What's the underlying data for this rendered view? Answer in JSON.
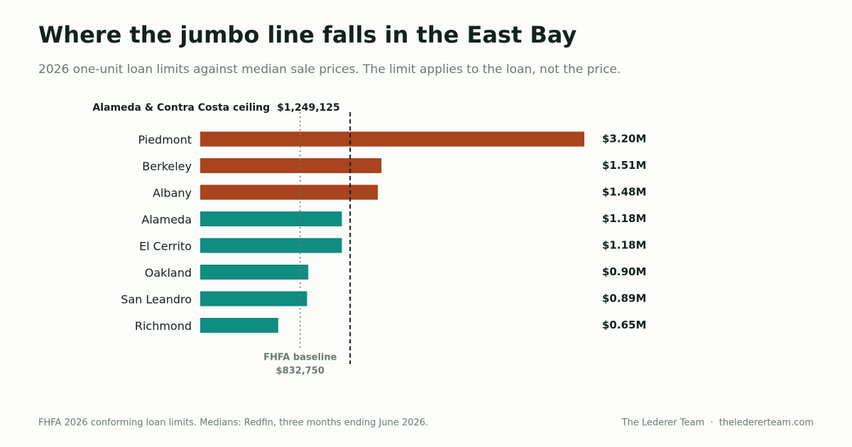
{
  "chart_data": {
    "type": "hbar",
    "title": "Where the jumbo line falls in the East Bay",
    "subtitle": "2026 one-unit loan limits against median sale prices. The limit applies to the loan, not the price.",
    "categories": [
      "Piedmont",
      "Berkeley",
      "Albany",
      "Alameda",
      "El Cerrito",
      "Oakland",
      "San Leandro",
      "Richmond"
    ],
    "values": [
      3200000,
      1510000,
      1480000,
      1180000,
      1180000,
      900000,
      890000,
      650000
    ],
    "value_labels": [
      "$3.20M",
      "$1.51M",
      "$1.48M",
      "$1.18M",
      "$1.18M",
      "$0.90M",
      "$0.89M",
      "$0.65M"
    ],
    "colors": [
      "#a8441e",
      "#a8441e",
      "#a8441e",
      "#118c80",
      "#118c80",
      "#118c80",
      "#118c80",
      "#118c80"
    ],
    "xlim": [
      0,
      3200000
    ],
    "reference_lines": [
      {
        "label": "Alameda & Contra Costa ceiling",
        "value": 1249125,
        "value_label": "$1,249,125",
        "style": "dashed",
        "color": "#14211c"
      },
      {
        "label": "FHFA baseline",
        "value": 832750,
        "value_label": "$832,750",
        "style": "dotted",
        "color": "#6b7a72"
      }
    ],
    "source": "FHFA 2026 conforming loan limits. Medians: Redfin, three months ending June 2026.",
    "credit": "The Lederer Team  ·  theledererteam.com"
  }
}
